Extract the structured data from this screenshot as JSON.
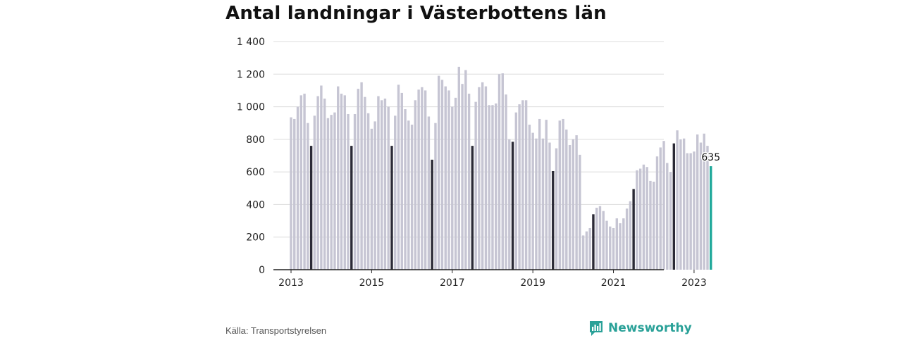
{
  "title": "Antal landningar i Västerbottens län",
  "source": "Källa: Transportstyrelsen",
  "brand": "Newsworthy",
  "colors": {
    "bar": "#c6c5d3",
    "highlight": "#2b2a36",
    "latest": "#1ea89a",
    "grid": "#dcdcdc",
    "axis": "#222222",
    "brand": "#2aa198"
  },
  "chart_data": {
    "type": "bar",
    "start": "2013-01",
    "ylim": [
      0,
      1400
    ],
    "y_ticks": [
      0,
      200,
      400,
      600,
      800,
      1000,
      1200,
      1400
    ],
    "y_tick_labels": [
      "0",
      "200",
      "400",
      "600",
      "800",
      "1 000",
      "1 200",
      "1 400"
    ],
    "x_tick_labels": [
      "2013",
      "2015",
      "2017",
      "2019",
      "2021",
      "2023"
    ],
    "x_tick_months": [
      "2013-01",
      "2015-01",
      "2017-01",
      "2019-01",
      "2021-01",
      "2023-01"
    ],
    "highlight_month": 7,
    "values": [
      935,
      925,
      1000,
      1070,
      1080,
      900,
      760,
      945,
      1065,
      1130,
      1050,
      930,
      950,
      965,
      1125,
      1080,
      1070,
      955,
      760,
      955,
      1110,
      1150,
      1060,
      960,
      865,
      910,
      1065,
      1040,
      1050,
      1000,
      760,
      945,
      1135,
      1085,
      985,
      915,
      890,
      1040,
      1105,
      1120,
      1100,
      940,
      675,
      900,
      1190,
      1165,
      1125,
      1100,
      1000,
      1055,
      1245,
      1140,
      1225,
      1080,
      760,
      1030,
      1120,
      1150,
      1125,
      1010,
      1010,
      1020,
      1200,
      1205,
      1075,
      800,
      785,
      965,
      1015,
      1040,
      1040,
      890,
      840,
      805,
      925,
      805,
      920,
      780,
      605,
      745,
      915,
      925,
      860,
      765,
      800,
      825,
      705,
      210,
      235,
      255,
      340,
      380,
      390,
      360,
      300,
      265,
      255,
      315,
      285,
      315,
      375,
      420,
      495,
      610,
      620,
      645,
      630,
      545,
      540,
      695,
      750,
      790,
      655,
      600,
      775,
      855,
      800,
      805,
      715,
      715,
      725,
      830,
      780,
      835,
      760,
      635
    ],
    "latest_value_label": "635"
  }
}
